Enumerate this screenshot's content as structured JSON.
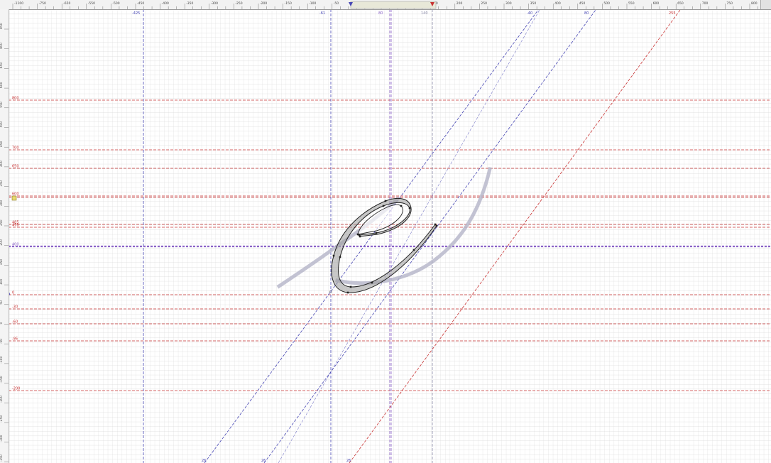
{
  "ruler": {
    "top_ticks": [
      "-1100",
      "-750",
      "-650",
      "-550",
      "-500",
      "-450",
      "-400",
      "-350",
      "-300",
      "-250",
      "-200",
      "-150",
      "-100",
      "-50",
      "0",
      "50",
      "100",
      "150",
      "200",
      "250",
      "300",
      "350",
      "400",
      "450",
      "500",
      "550",
      "600",
      "650",
      "700",
      "750",
      "800"
    ],
    "left_ticks": [
      "850",
      "800",
      "650",
      "600",
      "550",
      "500",
      "450",
      "400",
      "350",
      "300",
      "250",
      "200",
      "150",
      "100",
      "50",
      "0",
      "-50",
      "-100",
      "-150",
      "-200",
      "-250",
      "-300",
      "-350"
    ]
  },
  "guides": {
    "vertical_labels": [
      "-425",
      "-61",
      "80",
      "140"
    ],
    "horizontal_labels": [
      "800",
      "700",
      "650",
      "600",
      "485",
      "470",
      "400",
      "0",
      "-30",
      "-60",
      "-95",
      "-200"
    ],
    "slant_labels": [
      "-40",
      "80",
      "255"
    ],
    "bottom_labels": [
      "26",
      "26",
      "26"
    ],
    "origin_label": "0"
  },
  "colors": {
    "background": "#ffffff",
    "grid_minor": "#d9d9d9",
    "guide_red": "#c83232",
    "guide_blue": "#4646b4",
    "guide_purple": "#8c64c8",
    "template_gray": "#b4b4c8",
    "glyph_fill": "#9a9a9a",
    "glyph_stroke": "#222222"
  },
  "glyph": {
    "name": "e"
  }
}
